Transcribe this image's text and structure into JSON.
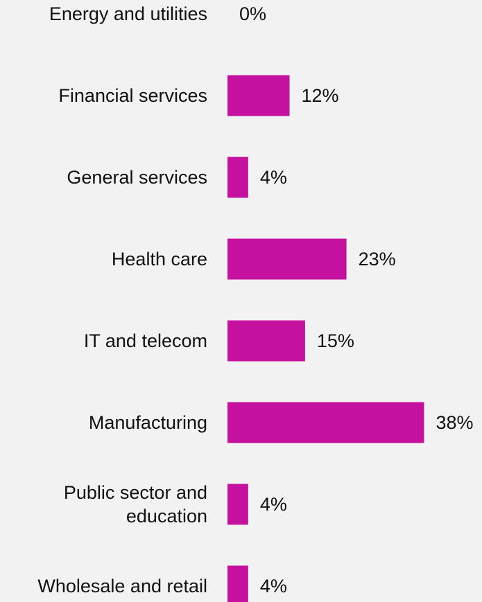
{
  "chart_data": {
    "type": "bar",
    "orientation": "horizontal",
    "categories": [
      "Energy and utilities",
      "Financial services",
      "General services",
      "Health care",
      "IT and telecom",
      "Manufacturing",
      "Public sector and education",
      "Wholesale and retail"
    ],
    "category_lines": [
      [
        "Energy and utilities"
      ],
      [
        "Financial services"
      ],
      [
        "General services"
      ],
      [
        "Health care"
      ],
      [
        "IT and telecom"
      ],
      [
        "Manufacturing"
      ],
      [
        "Public sector and",
        "education"
      ],
      [
        "Wholesale and retail"
      ]
    ],
    "values": [
      0,
      12,
      4,
      23,
      15,
      38,
      4,
      4
    ],
    "value_labels": [
      "0%",
      "12%",
      "4%",
      "23%",
      "15%",
      "38%",
      "4%",
      "4%"
    ],
    "bar_color": "#c4119e",
    "title": "",
    "xlabel": "",
    "ylabel": "",
    "grid": false,
    "legend": "none"
  }
}
